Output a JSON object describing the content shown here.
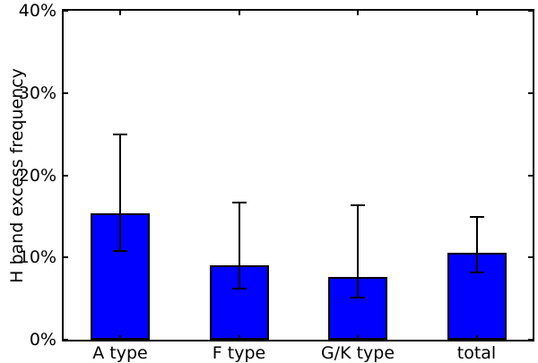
{
  "chart_data": {
    "type": "bar",
    "title": "",
    "xlabel": "",
    "ylabel": "H band excess frequency",
    "categories": [
      "A type",
      "F type",
      "G/K type",
      "total"
    ],
    "values": [
      15.4,
      9.1,
      7.6,
      10.6
    ],
    "error_bars": {
      "upper_ends": [
        25.0,
        16.7,
        16.4,
        14.9
      ],
      "lower_ends": [
        10.8,
        6.2,
        5.1,
        8.2
      ]
    },
    "ylim": [
      0,
      40
    ],
    "yticks": [
      0,
      10,
      20,
      30,
      40
    ],
    "ytick_labels": [
      "0%",
      "10%",
      "20%",
      "30%",
      "40%"
    ],
    "bar_color": "#0000ff",
    "bar_edge_color": "#000000",
    "error_color": "#000000",
    "background_color": "#ffffff",
    "grid": false,
    "legend": null,
    "tick_direction": "in"
  }
}
